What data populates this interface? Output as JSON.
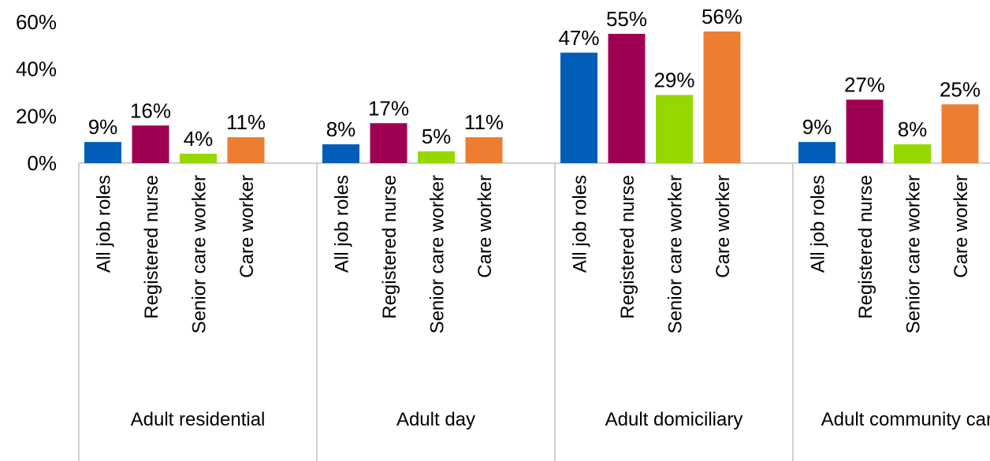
{
  "chart_data": {
    "type": "bar",
    "categories": [
      "Adult residential",
      "Adult day",
      "Adult domiciliary",
      "Adult community care"
    ],
    "series": [
      {
        "name": "All job roles",
        "color": "#005eb8",
        "values": [
          9,
          8,
          47,
          9
        ],
        "value_labels": [
          "9%",
          "8%",
          "47%",
          "9%"
        ]
      },
      {
        "name": "Registered nurse",
        "color": "#a00054",
        "values": [
          16,
          17,
          55,
          27
        ],
        "value_labels": [
          "16%",
          "17%",
          "55%",
          "27%"
        ]
      },
      {
        "name": "Senior care worker",
        "color": "#97d700",
        "values": [
          4,
          5,
          29,
          8
        ],
        "value_labels": [
          "4%",
          "5%",
          "29%",
          "8%"
        ]
      },
      {
        "name": "Care worker",
        "color": "#ed7d31",
        "values": [
          11,
          11,
          56,
          25
        ],
        "value_labels": [
          "11%",
          "11%",
          "56%",
          "25%"
        ]
      }
    ],
    "ylim": [
      0,
      60
    ],
    "yticks": [
      {
        "value": 0,
        "label": "0%"
      },
      {
        "value": 20,
        "label": "20%"
      },
      {
        "value": 40,
        "label": "40%"
      },
      {
        "value": 60,
        "label": "60%"
      }
    ]
  }
}
